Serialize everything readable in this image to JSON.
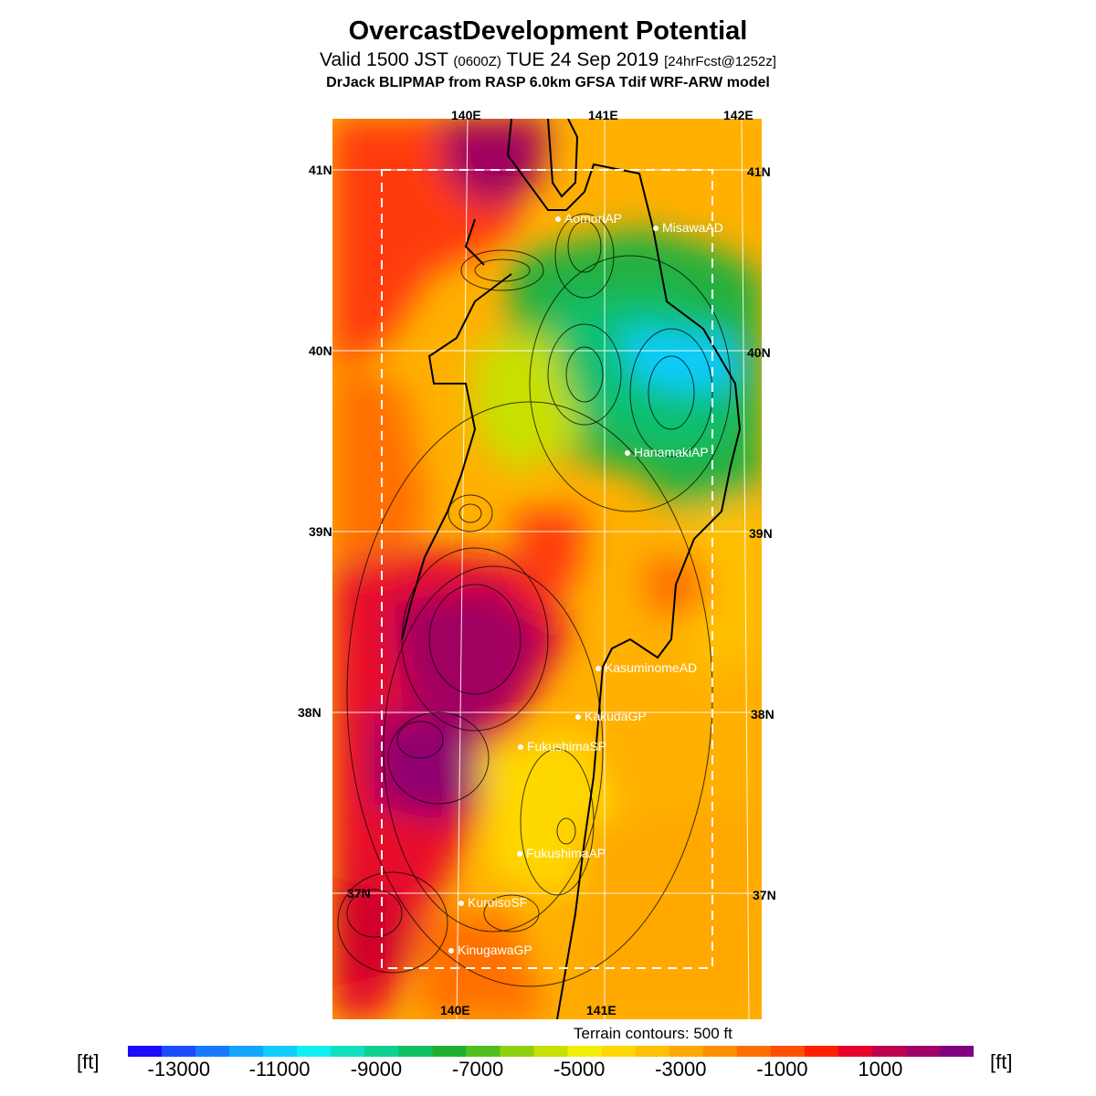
{
  "title": "OvercastDevelopment Potential",
  "subtitle_main": "Valid 1500 JST ",
  "subtitle_zone": "(0600Z)",
  "subtitle_date": " TUE 24 Sep 2019 ",
  "subtitle_fcst": "[24hrFcst@1252z]",
  "model_line": "DrJack BLIPMAP from RASP 6.0km GFSA Tdif WRF-ARW model",
  "longitude_labels": [
    "140E",
    "141E",
    "142E"
  ],
  "latitude_labels": [
    "41N",
    "40N",
    "39N",
    "38N",
    "37N"
  ],
  "cities": [
    {
      "name": "AomoriAP"
    },
    {
      "name": "MisawaAD"
    },
    {
      "name": "HanamakiAP"
    },
    {
      "name": "KasuminomeAD"
    },
    {
      "name": "KakudaGP"
    },
    {
      "name": "FukushimaSP"
    },
    {
      "name": "FukushimaAP"
    },
    {
      "name": "KuroisoSF"
    },
    {
      "name": "KinugawaGP"
    }
  ],
  "terrain_note": "Terrain contours: 500 ft",
  "colorbar": {
    "unit": "[ft]",
    "labels": [
      "-13000",
      "-11000",
      "-9000",
      "-7000",
      "-5000",
      "-3000",
      "-1000",
      "1000"
    ],
    "colors": [
      "#1a0aff",
      "#1a4cff",
      "#1a7aff",
      "#12a6ff",
      "#10ccff",
      "#10f0f0",
      "#10e0c0",
      "#10d090",
      "#10c060",
      "#20b030",
      "#50c020",
      "#90d010",
      "#c8e000",
      "#f0f000",
      "#ffd800",
      "#ffc000",
      "#ffa800",
      "#ff9000",
      "#ff7000",
      "#ff5000",
      "#ff2000",
      "#e8002a",
      "#c00050",
      "#a0006a",
      "#800080"
    ]
  }
}
